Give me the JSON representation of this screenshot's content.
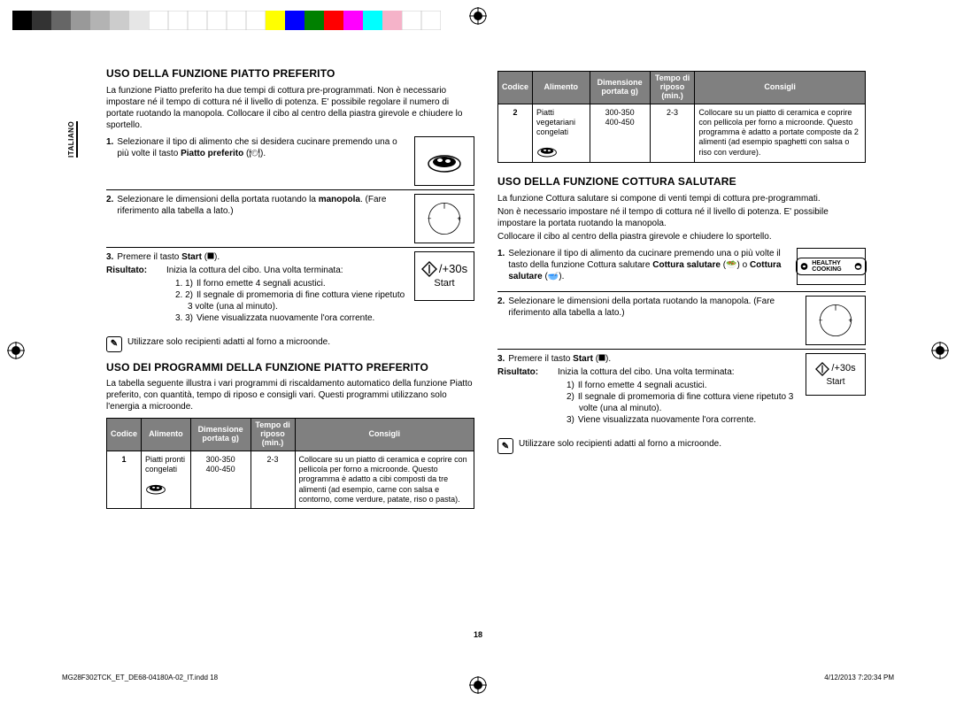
{
  "colorbar": {
    "colors": [
      "#000000",
      "#333333",
      "#666666",
      "#999999",
      "#b3b3b3",
      "#cccccc",
      "#e6e6e6",
      "#ffffff",
      "#ffffff",
      "#ffffff",
      "#ffffff",
      "#ffffff",
      "#ffffff",
      "#ffff00",
      "#0000ff",
      "#008000",
      "#ff0000",
      "#ff00ff",
      "#00ffff",
      "#f5b3c9",
      "#ffffff",
      "#ffffff"
    ]
  },
  "side_label": "ITALIANO",
  "left": {
    "h1": "USO DELLA FUNZIONE PIATTO PREFERITO",
    "intro": "La funzione Piatto preferito ha due tempi di cottura pre-programmati. Non è necessario impostare né il tempo di cottura né il livello di potenza. E' possibile regolare il numero di portate ruotando la manopola. Collocare il cibo al centro della piastra girevole e chiudere lo sportello.",
    "step1_num": "1.",
    "step1": "Selezionare il tipo di alimento che si desidera cucinare premendo una o più volte il tasto ",
    "step1_bold": "Piatto preferito",
    "step1_tail": " (🍽).",
    "step2_num": "2.",
    "step2": "Selezionare le dimensioni della portata ruotando la ",
    "step2_bold": "manopola",
    "step2_tail": ". (Fare riferimento alla tabella a lato.)",
    "step3_num": "3.",
    "step3": "Premere il tasto ",
    "step3_bold": "Start",
    "step3_tail": " (⯀).",
    "risultato_label": "Risultato:",
    "risultato_text": "Inizia la cottura del cibo. Una volta terminata:",
    "r1": "Il forno emette 4 segnali acustici.",
    "r2": "Il segnale di promemoria di fine cottura viene ripetuto 3 volte (una al minuto).",
    "r3": "Viene visualizzata nuovamente l'ora corrente.",
    "note": "Utilizzare solo recipienti adatti al forno a microonde.",
    "start_label": "Start",
    "start_plus": "/+30s",
    "h2": "USO DEI PROGRAMMI DELLA FUNZIONE PIATTO PREFERITO",
    "h2_intro": "La tabella seguente illustra i vari programmi di riscaldamento automatico della funzione Piatto preferito, con quantità, tempo di riposo e consigli vari. Questi programmi utilizzano solo l'energia a microonde.",
    "table": {
      "headers": [
        "Codice",
        "Alimento",
        "Dimensione portata g)",
        "Tempo di riposo (min.)",
        "Consigli"
      ],
      "code": "1",
      "food": "Piatti pronti congelati",
      "portion": "300-350\n400-450",
      "rest": "2-3",
      "tips": "Collocare su un piatto di ceramica e coprire con pellicola per forno a microonde. Questo programma è adatto a cibi composti da tre alimenti (ad esempio, carne con salsa e contorno, come verdure, patate, riso o pasta)."
    }
  },
  "right": {
    "table": {
      "headers": [
        "Codice",
        "Alimento",
        "Dimensione portata g)",
        "Tempo di riposo (min.)",
        "Consigli"
      ],
      "code": "2",
      "food": "Piatti vegetariani congelati",
      "portion": "300-350\n400-450",
      "rest": "2-3",
      "tips": "Collocare su un piatto di ceramica e coprire con pellicola per forno a microonde. Questo programma è adatto a portate composte da 2 alimenti (ad esempio spaghetti con salsa o riso con verdure)."
    },
    "h1": "USO DELLA FUNZIONE COTTURA SALUTARE",
    "intro1": "La funzione Cottura salutare si compone di venti tempi di cottura pre-programmati.",
    "intro2": "Non è necessario impostare né il tempo di cottura né il livello di potenza. E' possibile impostare la portata ruotando la manopola.",
    "intro3": "Collocare il cibo al centro della piastra girevole e chiudere lo sportello.",
    "step1_num": "1.",
    "step1": "Selezionare il tipo di alimento da cucinare premendo una o più volte il tasto della funzione Cottura salutare ",
    "step1_bold": "Cottura salutare",
    "step1_mid": " (🥗) o ",
    "step1_bold2": "Cottura salutare",
    "step1_tail": " (🥣).",
    "healthy_label": "HEALTHY COOKING",
    "step2_num": "2.",
    "step2": "Selezionare le dimensioni della portata ruotando la manopola. (Fare riferimento alla tabella a lato.)",
    "step3_num": "3.",
    "step3": "Premere il tasto ",
    "step3_bold": "Start",
    "step3_tail": " (⯀).",
    "risultato_label": "Risultato:",
    "risultato_text": "Inizia la cottura del cibo. Una volta terminata:",
    "r1": "Il forno emette 4 segnali acustici.",
    "r2": "Il segnale di promemoria di fine cottura viene ripetuto 3 volte (una al minuto).",
    "r3": "Viene visualizzata nuovamente l'ora corrente.",
    "note": "Utilizzare solo recipienti adatti al forno a microonde.",
    "start_label": "Start",
    "start_plus": "/+30s"
  },
  "page_number": "18",
  "footer_left": "MG28F302TCK_ET_DE68-04180A-02_IT.indd   18",
  "footer_right": "4/12/2013   7:20:34 PM"
}
